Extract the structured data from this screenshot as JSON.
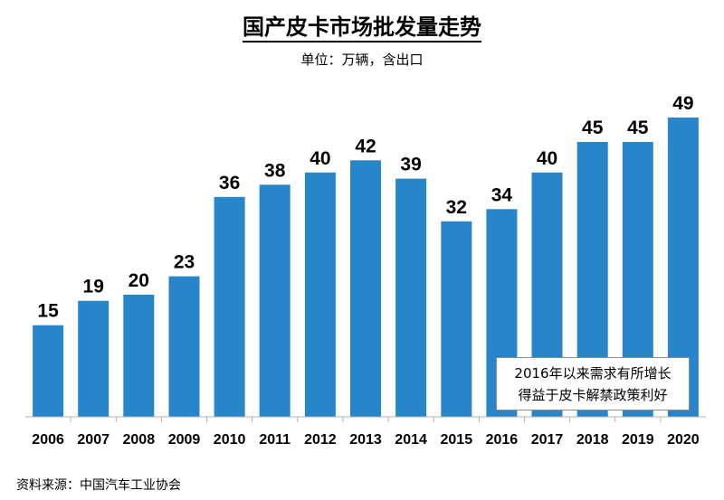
{
  "chart_data": {
    "type": "bar",
    "title": "国产皮卡市场批发量走势",
    "subtitle": "单位：万辆，含出口",
    "categories": [
      "2006",
      "2007",
      "2008",
      "2009",
      "2010",
      "2011",
      "2012",
      "2013",
      "2014",
      "2015",
      "2016",
      "2017",
      "2018",
      "2019",
      "2020"
    ],
    "values": [
      15,
      19,
      20,
      23,
      36,
      38,
      40,
      42,
      39,
      32,
      34,
      40,
      45,
      45,
      49
    ],
    "ylim": [
      0,
      49
    ],
    "bar_color": "#2785c9",
    "annotation": [
      "2016年以来需求有所增长",
      "得益于皮卡解禁政策利好"
    ],
    "source": "资料来源：中国汽车工业协会",
    "grid": false,
    "legend": "none"
  }
}
